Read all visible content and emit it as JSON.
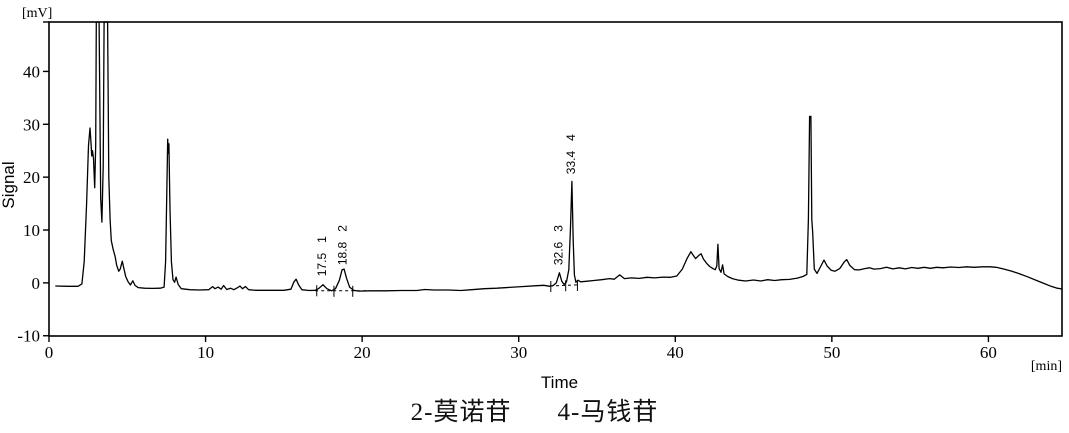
{
  "caption": {
    "item2": "2-莫诺苷",
    "item4": "4-马钱苷"
  },
  "chart_data": {
    "type": "line",
    "ylabel": "Signal",
    "y_unit": "[mV]",
    "xlabel": "Time",
    "x_unit": "[min]",
    "xlim": [
      0,
      64.7
    ],
    "ylim": [
      -10.05,
      49.35
    ],
    "x_ticks": [
      0,
      10,
      20,
      30,
      40,
      50,
      60
    ],
    "y_ticks": [
      -10,
      0,
      10,
      20,
      30,
      40
    ],
    "grid": false,
    "line_color": "#000000",
    "background": "#ffffff",
    "peaks": [
      {
        "id": "1",
        "rt": "17.5",
        "label_base_mv": 0.5
      },
      {
        "id": "2",
        "rt": "18.8",
        "label_base_mv": 2.6
      },
      {
        "id": "3",
        "rt": "32.6",
        "label_base_mv": 2.6
      },
      {
        "id": "4",
        "rt": "33.4",
        "label_base_mv": 19.8
      }
    ],
    "baseline_segments": [
      {
        "from": [
          17.0,
          -1.5
        ],
        "to": [
          20.35,
          -1.5
        ]
      },
      {
        "from": [
          32.0,
          -0.6
        ],
        "to": [
          33.9,
          -0.35
        ]
      }
    ],
    "integration_marks": [
      {
        "t": 17.1,
        "v": -1.4
      },
      {
        "t": 18.2,
        "v": -1.5
      },
      {
        "t": 19.4,
        "v": -1.5
      },
      {
        "t": 32.05,
        "v": -0.6
      },
      {
        "t": 33.0,
        "v": -0.45
      },
      {
        "t": 33.75,
        "v": -0.4
      }
    ],
    "series": [
      {
        "name": "signal",
        "points": [
          [
            0.4,
            -0.6
          ],
          [
            1.2,
            -0.65
          ],
          [
            1.85,
            -0.65
          ],
          [
            2.1,
            -0.2
          ],
          [
            2.25,
            4
          ],
          [
            2.4,
            15
          ],
          [
            2.52,
            26
          ],
          [
            2.62,
            29.3
          ],
          [
            2.68,
            26.5
          ],
          [
            2.73,
            24
          ],
          [
            2.78,
            25
          ],
          [
            2.84,
            23.5
          ],
          [
            2.92,
            18
          ],
          [
            2.98,
            26
          ],
          [
            3.02,
            49.35
          ],
          [
            3.2,
            49.35
          ],
          [
            3.3,
            16
          ],
          [
            3.38,
            11.5
          ],
          [
            3.46,
            22
          ],
          [
            3.52,
            49.35
          ],
          [
            3.74,
            49.35
          ],
          [
            3.82,
            20
          ],
          [
            3.9,
            12
          ],
          [
            3.98,
            8
          ],
          [
            4.1,
            6.3
          ],
          [
            4.22,
            5.0
          ],
          [
            4.32,
            3.4
          ],
          [
            4.45,
            2.2
          ],
          [
            4.55,
            2.6
          ],
          [
            4.68,
            4.1
          ],
          [
            4.78,
            2.8
          ],
          [
            4.9,
            1.2
          ],
          [
            5.05,
            0.2
          ],
          [
            5.2,
            -0.4
          ],
          [
            5.35,
            0.4
          ],
          [
            5.5,
            -0.5
          ],
          [
            5.7,
            -0.9
          ],
          [
            6.1,
            -1.0
          ],
          [
            6.6,
            -1.05
          ],
          [
            7.1,
            -1.0
          ],
          [
            7.35,
            -0.8
          ],
          [
            7.45,
            4
          ],
          [
            7.52,
            16
          ],
          [
            7.58,
            27.2
          ],
          [
            7.62,
            24.5
          ],
          [
            7.66,
            26.3
          ],
          [
            7.73,
            14
          ],
          [
            7.82,
            4
          ],
          [
            7.92,
            0.6
          ],
          [
            8.02,
            0.1
          ],
          [
            8.12,
            1.1
          ],
          [
            8.25,
            -0.3
          ],
          [
            8.45,
            -1.1
          ],
          [
            9.0,
            -1.3
          ],
          [
            9.6,
            -1.35
          ],
          [
            10.2,
            -1.3
          ],
          [
            10.45,
            -0.7
          ],
          [
            10.6,
            -1.1
          ],
          [
            10.8,
            -0.8
          ],
          [
            11.0,
            -1.2
          ],
          [
            11.15,
            -0.5
          ],
          [
            11.35,
            -1.25
          ],
          [
            11.6,
            -1.0
          ],
          [
            11.8,
            -1.3
          ],
          [
            12.05,
            -0.9
          ],
          [
            12.2,
            -0.6
          ],
          [
            12.35,
            -1.1
          ],
          [
            12.55,
            -0.7
          ],
          [
            12.75,
            -1.3
          ],
          [
            13.2,
            -1.4
          ],
          [
            13.8,
            -1.4
          ],
          [
            14.4,
            -1.4
          ],
          [
            15.0,
            -1.4
          ],
          [
            15.45,
            -1.2
          ],
          [
            15.65,
            0.2
          ],
          [
            15.78,
            0.7
          ],
          [
            15.95,
            -0.4
          ],
          [
            16.15,
            -1.3
          ],
          [
            16.6,
            -1.45
          ],
          [
            17.0,
            -1.4
          ],
          [
            17.25,
            -1.0
          ],
          [
            17.5,
            -0.35
          ],
          [
            17.75,
            -1.1
          ],
          [
            18.05,
            -1.5
          ],
          [
            18.3,
            -1.1
          ],
          [
            18.55,
            0.5
          ],
          [
            18.72,
            2.5
          ],
          [
            18.85,
            2.6
          ],
          [
            19.0,
            0.9
          ],
          [
            19.2,
            -0.8
          ],
          [
            19.45,
            -1.4
          ],
          [
            19.8,
            -1.55
          ],
          [
            20.5,
            -1.5
          ],
          [
            21.5,
            -1.5
          ],
          [
            22.5,
            -1.45
          ],
          [
            23.5,
            -1.45
          ],
          [
            24.0,
            -1.25
          ],
          [
            24.6,
            -1.35
          ],
          [
            25.5,
            -1.35
          ],
          [
            26.3,
            -1.45
          ],
          [
            27.0,
            -1.3
          ],
          [
            27.8,
            -1.1
          ],
          [
            28.6,
            -1.0
          ],
          [
            29.4,
            -0.85
          ],
          [
            30.2,
            -0.7
          ],
          [
            31.0,
            -0.55
          ],
          [
            31.6,
            -0.45
          ],
          [
            32.0,
            -0.65
          ],
          [
            32.2,
            -0.5
          ],
          [
            32.4,
            0
          ],
          [
            32.6,
            1.9
          ],
          [
            32.75,
            0.3
          ],
          [
            32.9,
            -0.3
          ],
          [
            33.05,
            0.2
          ],
          [
            33.2,
            2.5
          ],
          [
            33.3,
            10
          ],
          [
            33.4,
            19.2
          ],
          [
            33.48,
            8
          ],
          [
            33.56,
            1.5
          ],
          [
            33.65,
            0.1
          ],
          [
            33.78,
            0.5
          ],
          [
            33.95,
            0.2
          ],
          [
            34.3,
            0.3
          ],
          [
            34.8,
            0.45
          ],
          [
            35.3,
            0.6
          ],
          [
            35.8,
            0.8
          ],
          [
            36.1,
            0.7
          ],
          [
            36.45,
            1.5
          ],
          [
            36.75,
            0.8
          ],
          [
            37.2,
            0.95
          ],
          [
            37.7,
            0.85
          ],
          [
            38.2,
            1.05
          ],
          [
            38.7,
            0.95
          ],
          [
            39.2,
            1.1
          ],
          [
            39.7,
            1.05
          ],
          [
            40.1,
            1.3
          ],
          [
            40.45,
            2.6
          ],
          [
            40.75,
            4.6
          ],
          [
            41.0,
            5.9
          ],
          [
            41.15,
            5.2
          ],
          [
            41.3,
            4.6
          ],
          [
            41.5,
            5.2
          ],
          [
            41.65,
            5.5
          ],
          [
            41.8,
            4.5
          ],
          [
            42.0,
            3.7
          ],
          [
            42.2,
            3.1
          ],
          [
            42.4,
            2.7
          ],
          [
            42.55,
            2.5
          ],
          [
            42.65,
            3.2
          ],
          [
            42.72,
            7.3
          ],
          [
            42.8,
            2.7
          ],
          [
            42.92,
            2.0
          ],
          [
            43.02,
            3.4
          ],
          [
            43.12,
            1.7
          ],
          [
            43.35,
            1.2
          ],
          [
            43.65,
            0.8
          ],
          [
            44.05,
            0.5
          ],
          [
            44.5,
            0.35
          ],
          [
            45.0,
            0.55
          ],
          [
            45.45,
            0.35
          ],
          [
            45.9,
            0.6
          ],
          [
            46.35,
            0.45
          ],
          [
            46.8,
            0.6
          ],
          [
            47.3,
            0.65
          ],
          [
            47.8,
            0.9
          ],
          [
            48.15,
            1.2
          ],
          [
            48.4,
            1.6
          ],
          [
            48.5,
            12
          ],
          [
            48.58,
            31.5
          ],
          [
            48.66,
            31.5
          ],
          [
            48.72,
            12
          ],
          [
            48.78,
            9.5
          ],
          [
            48.88,
            2.6
          ],
          [
            49.05,
            1.8
          ],
          [
            49.3,
            3.2
          ],
          [
            49.5,
            4.3
          ],
          [
            49.7,
            3.2
          ],
          [
            49.95,
            2.4
          ],
          [
            50.2,
            2.2
          ],
          [
            50.5,
            2.7
          ],
          [
            50.8,
            4.0
          ],
          [
            50.95,
            4.4
          ],
          [
            51.15,
            3.3
          ],
          [
            51.45,
            2.5
          ],
          [
            51.75,
            2.45
          ],
          [
            52.1,
            2.7
          ],
          [
            52.4,
            2.85
          ],
          [
            52.7,
            2.6
          ],
          [
            53.1,
            2.7
          ],
          [
            53.5,
            2.95
          ],
          [
            53.9,
            2.65
          ],
          [
            54.3,
            2.85
          ],
          [
            54.7,
            2.65
          ],
          [
            55.1,
            2.9
          ],
          [
            55.5,
            2.75
          ],
          [
            55.9,
            2.95
          ],
          [
            56.3,
            2.75
          ],
          [
            56.7,
            2.95
          ],
          [
            57.1,
            2.85
          ],
          [
            57.6,
            3.0
          ],
          [
            58.1,
            2.9
          ],
          [
            58.6,
            3.05
          ],
          [
            59.1,
            2.95
          ],
          [
            59.6,
            3.05
          ],
          [
            60.1,
            3.05
          ],
          [
            60.5,
            2.95
          ],
          [
            61.0,
            2.6
          ],
          [
            61.5,
            2.2
          ],
          [
            62.0,
            1.7
          ],
          [
            62.5,
            1.15
          ],
          [
            63.0,
            0.55
          ],
          [
            63.5,
            -0.05
          ],
          [
            64.0,
            -0.65
          ],
          [
            64.4,
            -1.0
          ],
          [
            64.7,
            -1.15
          ]
        ]
      }
    ]
  }
}
